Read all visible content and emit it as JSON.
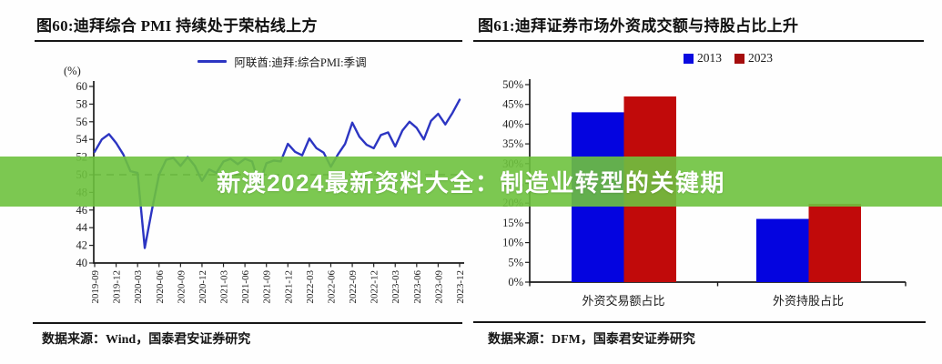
{
  "banner": {
    "text": "新澳2024最新资料大全：制造业转型的关键期",
    "bg_rgba": "rgba(110,194,62,0.9)",
    "bg_hex": "#6ec23e",
    "text_color": "#ffffff"
  },
  "left_chart": {
    "title": "图60:迪拜综合 PMI 持续处于荣枯线上方",
    "unit_label": "(%)",
    "legend_label": "阿联酋:迪拜:综合PMI:季调",
    "source": "数据来源：Wind，国泰君安证券研究",
    "line_color": "#2c35c2"
  },
  "right_chart": {
    "title": "图61:迪拜证券市场外资成交额与持股占比上升",
    "source": "数据来源：DFM，国泰君安证券研究"
  },
  "chart_data": [
    {
      "type": "line",
      "title": "图60:迪拜综合 PMI 持续处于荣枯线上方",
      "ylabel": "(%)",
      "series_name": "阿联酋:迪拜:综合PMI:季调",
      "x_start": "2019-09",
      "x_freq": "monthly",
      "x_tick_labels": [
        "2019-09",
        "2019-12",
        "2020-03",
        "2020-06",
        "2020-09",
        "2020-12",
        "2021-03",
        "2021-06",
        "2021-09",
        "2021-12",
        "2022-03",
        "2022-06",
        "2022-09",
        "2022-12",
        "2023-03",
        "2023-06",
        "2023-09",
        "2023-12"
      ],
      "values": [
        52.6,
        54.0,
        54.6,
        53.6,
        52.3,
        50.4,
        50.2,
        41.7,
        46.0,
        50.0,
        51.7,
        51.9,
        51.0,
        52.0,
        51.0,
        49.3,
        50.6,
        50.2,
        51.5,
        51.8,
        51.2,
        51.8,
        51.5,
        48.9,
        51.3,
        51.6,
        51.5,
        53.5,
        52.6,
        52.2,
        54.1,
        53.0,
        52.5,
        50.9,
        52.3,
        53.5,
        55.9,
        54.3,
        53.4,
        53.0,
        54.5,
        54.8,
        53.2,
        55.0,
        56.0,
        55.3,
        54.0,
        56.1,
        56.9,
        55.7,
        57.0,
        58.5
      ],
      "ylim": [
        40,
        60
      ],
      "ytick_step": 2,
      "reference_line": 50,
      "line_color": "#2c35c2",
      "grid": false,
      "legend_position": "top"
    },
    {
      "type": "bar",
      "title": "图61:迪拜证券市场外资成交额与持股占比上升",
      "categories": [
        "外资交易额占比",
        "外资持股占比"
      ],
      "series": [
        {
          "name": "2013",
          "color": "#0404e0",
          "legend_color": "#0a0ae0",
          "values": [
            43,
            16
          ]
        },
        {
          "name": "2023",
          "color": "#c10a0a",
          "legend_color": "#a50d0d",
          "values": [
            47,
            19.8
          ]
        }
      ],
      "ylim": [
        0,
        50
      ],
      "ytick_step": 5,
      "ytick_suffix": "%",
      "grid": false,
      "legend_position": "top"
    }
  ]
}
